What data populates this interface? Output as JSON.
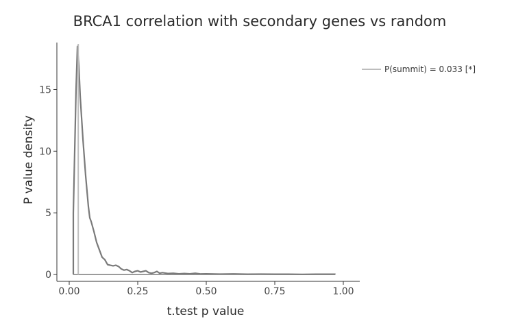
{
  "chart_data": {
    "type": "line",
    "title": "BRCA1 correlation with secondary genes vs random",
    "xlabel": "t.test p value",
    "ylabel": "P value density",
    "xlim": [
      0,
      1
    ],
    "ylim": [
      0,
      18.7
    ],
    "x_ticks": [
      0,
      0.25,
      0.5,
      0.75,
      1
    ],
    "x_tick_labels": [
      "0.00",
      "0.25",
      "0.50",
      "0.75",
      "1.00"
    ],
    "y_ticks": [
      0,
      5,
      10,
      15
    ],
    "y_tick_labels": [
      "0",
      "5",
      "10",
      "15"
    ],
    "grid": false,
    "legend_position": "top-right",
    "series": [
      {
        "kind": "density",
        "color": "#7a7a7a",
        "x": [
          0.015,
          0.015,
          0.02,
          0.025,
          0.03,
          0.035,
          0.04,
          0.05,
          0.06,
          0.07,
          0.075,
          0.08,
          0.09,
          0.1,
          0.11,
          0.12,
          0.13,
          0.14,
          0.15,
          0.16,
          0.17,
          0.18,
          0.19,
          0.2,
          0.21,
          0.22,
          0.23,
          0.24,
          0.25,
          0.26,
          0.27,
          0.28,
          0.29,
          0.3,
          0.31,
          0.32,
          0.33,
          0.34,
          0.36,
          0.38,
          0.4,
          0.42,
          0.44,
          0.46,
          0.48,
          0.5,
          0.55,
          0.6,
          0.65,
          0.7,
          0.75,
          0.8,
          0.85,
          0.9,
          0.97,
          0.97
        ],
        "y": [
          0,
          5,
          10,
          15,
          18.5,
          17,
          14.5,
          11,
          8,
          5.5,
          4.6,
          4.3,
          3.5,
          2.6,
          2,
          1.4,
          1.2,
          0.8,
          0.75,
          0.7,
          0.75,
          0.65,
          0.45,
          0.35,
          0.4,
          0.3,
          0.15,
          0.25,
          0.3,
          0.2,
          0.25,
          0.3,
          0.15,
          0.1,
          0.15,
          0.25,
          0.1,
          0.15,
          0.08,
          0.1,
          0.05,
          0.08,
          0.05,
          0.1,
          0.04,
          0.05,
          0.03,
          0.04,
          0.02,
          0.03,
          0.02,
          0.02,
          0.01,
          0.02,
          0.02,
          0
        ]
      },
      {
        "name": "P(summit) = 0.033 [*]",
        "kind": "vline",
        "color": "#bdbdbd",
        "x": [
          0.033,
          0.033
        ],
        "y": [
          0,
          18.7
        ]
      }
    ]
  }
}
